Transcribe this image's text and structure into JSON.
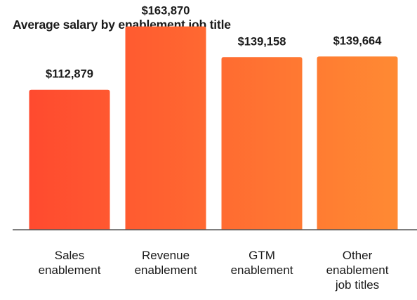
{
  "chart_data": {
    "type": "bar",
    "title": "Average salary by enablement job title",
    "xlabel": "",
    "ylabel": "",
    "categories": [
      [
        "Sales",
        "enablement"
      ],
      [
        "Revenue",
        "enablement"
      ],
      [
        "GTM",
        "enablement"
      ],
      [
        "Other",
        "enablement",
        "job titles"
      ]
    ],
    "values": [
      112879,
      163870,
      139158,
      139664
    ],
    "value_labels": [
      "$112,879",
      "$163,870",
      "$139,158",
      "$139,664"
    ],
    "ylim": [
      0,
      175000
    ],
    "grid": false,
    "colors": {
      "bar_gradient_start": "#FF4A2F",
      "bar_gradient_end": "#FF8A33",
      "axis": "#555555",
      "text": "#1a1a1a"
    }
  }
}
